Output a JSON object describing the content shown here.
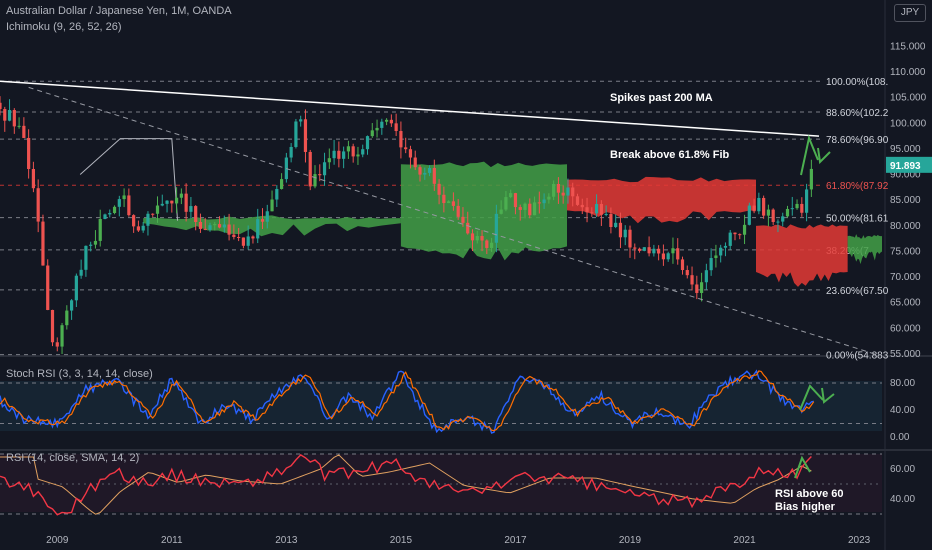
{
  "header": {
    "symbol_title": "Australian Dollar / Japanese Yen, 1M, OANDA",
    "indicator": "Ichimoku (9, 26, 52, 26)",
    "currency_badge": "JPY"
  },
  "colors": {
    "background": "#131722",
    "candle_up": "#26a69a",
    "candle_up_bright": "#4caf50",
    "candle_down": "#ef5350",
    "cloud_bull": "#43a047",
    "cloud_bear": "#e53935",
    "trendline": "#ffffff",
    "last_price_badge": "#26a69a",
    "stoch_k": "#2962ff",
    "stoch_d": "#ff6d00",
    "rsi": "#f23645",
    "rsi_ma": "#e0a060",
    "arrow": "#4caf50"
  },
  "chart_data": [
    {
      "type": "candlestick",
      "title": "Australian Dollar / Japanese Yen, 1M, OANDA",
      "x_tick_labels": [
        "2009",
        "2011",
        "2013",
        "2015",
        "2017",
        "2019",
        "2021",
        "2023"
      ],
      "x_tick_years": [
        2009,
        2011,
        2013,
        2015,
        2017,
        2019,
        2021,
        2023
      ],
      "y_tick_labels": [
        "55.000",
        "60.000",
        "65.000",
        "70.000",
        "75.000",
        "80.000",
        "85.000",
        "90.000",
        "95.000",
        "100.000",
        "105.000",
        "110.000",
        "115.000"
      ],
      "ylim": [
        55,
        115
      ],
      "last_price": "91.893",
      "fib_levels": [
        {
          "label": "100.00%(108.",
          "value": 108.2
        },
        {
          "label": "88.60%(102.2",
          "value": 102.2
        },
        {
          "label": "78.60%(96.90",
          "value": 96.9
        },
        {
          "label": "61.80%(87.92",
          "value": 87.92
        },
        {
          "label": "50.00%(81.61",
          "value": 81.61
        },
        {
          "label": "38.20%(7",
          "value": 75.3
        },
        {
          "label": "23.60%(67.50",
          "value": 67.5
        },
        {
          "label": "0.00%(54.883",
          "value": 54.883
        }
      ],
      "annotations": [
        {
          "text": "Spikes past 200 MA"
        },
        {
          "text": "Break above 61.8% Fib"
        }
      ],
      "anchors": [
        {
          "year": 2008.0,
          "value": 104.0
        },
        {
          "year": 2008.5,
          "value": 98.0
        },
        {
          "year": 2008.75,
          "value": 82.0
        },
        {
          "year": 2008.95,
          "value": 60.0
        },
        {
          "year": 2009.1,
          "value": 56.5
        },
        {
          "year": 2009.5,
          "value": 73.0
        },
        {
          "year": 2009.9,
          "value": 82.0
        },
        {
          "year": 2010.3,
          "value": 85.0
        },
        {
          "year": 2010.45,
          "value": 78.0
        },
        {
          "year": 2010.9,
          "value": 84.0
        },
        {
          "year": 2011.3,
          "value": 85.0
        },
        {
          "year": 2011.6,
          "value": 78.0
        },
        {
          "year": 2012.0,
          "value": 80.0
        },
        {
          "year": 2012.4,
          "value": 77.0
        },
        {
          "year": 2012.9,
          "value": 86.0
        },
        {
          "year": 2013.3,
          "value": 102.0
        },
        {
          "year": 2013.5,
          "value": 89.0
        },
        {
          "year": 2013.9,
          "value": 94.0
        },
        {
          "year": 2014.4,
          "value": 95.0
        },
        {
          "year": 2014.9,
          "value": 101.0
        },
        {
          "year": 2015.2,
          "value": 93.0
        },
        {
          "year": 2015.6,
          "value": 90.0
        },
        {
          "year": 2015.9,
          "value": 84.0
        },
        {
          "year": 2016.3,
          "value": 78.0
        },
        {
          "year": 2016.6,
          "value": 76.0
        },
        {
          "year": 2016.9,
          "value": 86.0
        },
        {
          "year": 2017.3,
          "value": 83.0
        },
        {
          "year": 2017.8,
          "value": 88.0
        },
        {
          "year": 2018.3,
          "value": 84.0
        },
        {
          "year": 2018.8,
          "value": 81.0
        },
        {
          "year": 2019.0,
          "value": 78.0
        },
        {
          "year": 2019.5,
          "value": 74.0
        },
        {
          "year": 2019.9,
          "value": 75.0
        },
        {
          "year": 2020.2,
          "value": 66.0
        },
        {
          "year": 2020.5,
          "value": 74.0
        },
        {
          "year": 2020.9,
          "value": 78.0
        },
        {
          "year": 2021.3,
          "value": 85.0
        },
        {
          "year": 2021.6,
          "value": 81.0
        },
        {
          "year": 2021.9,
          "value": 82.0
        },
        {
          "year": 2022.1,
          "value": 84.0
        },
        {
          "year": 2022.22,
          "value": 91.9
        }
      ]
    },
    {
      "type": "line",
      "title": "Stoch RSI (3, 3, 14, 14, close)",
      "y_tick_labels": [
        "0.00",
        "40.00",
        "80.00"
      ],
      "ylim": [
        0,
        100
      ],
      "bands": [
        20,
        80
      ],
      "anchors": [
        {
          "year": 2008.0,
          "value": 55
        },
        {
          "year": 2008.4,
          "value": 25
        },
        {
          "year": 2009.0,
          "value": 20
        },
        {
          "year": 2009.5,
          "value": 70
        },
        {
          "year": 2010.0,
          "value": 85
        },
        {
          "year": 2010.6,
          "value": 30
        },
        {
          "year": 2011.0,
          "value": 85
        },
        {
          "year": 2011.5,
          "value": 20
        },
        {
          "year": 2012.0,
          "value": 50
        },
        {
          "year": 2012.4,
          "value": 25
        },
        {
          "year": 2012.9,
          "value": 70
        },
        {
          "year": 2013.3,
          "value": 93
        },
        {
          "year": 2013.7,
          "value": 30
        },
        {
          "year": 2014.1,
          "value": 60
        },
        {
          "year": 2014.5,
          "value": 30
        },
        {
          "year": 2015.0,
          "value": 95
        },
        {
          "year": 2015.6,
          "value": 10
        },
        {
          "year": 2016.1,
          "value": 30
        },
        {
          "year": 2016.6,
          "value": 10
        },
        {
          "year": 2017.1,
          "value": 90
        },
        {
          "year": 2017.6,
          "value": 70
        },
        {
          "year": 2018.0,
          "value": 35
        },
        {
          "year": 2018.5,
          "value": 60
        },
        {
          "year": 2019.0,
          "value": 20
        },
        {
          "year": 2019.5,
          "value": 40
        },
        {
          "year": 2020.0,
          "value": 15
        },
        {
          "year": 2020.4,
          "value": 60
        },
        {
          "year": 2020.8,
          "value": 85
        },
        {
          "year": 2021.2,
          "value": 95
        },
        {
          "year": 2021.6,
          "value": 60
        },
        {
          "year": 2021.9,
          "value": 40
        },
        {
          "year": 2022.22,
          "value": 52
        }
      ]
    },
    {
      "type": "line",
      "title": "RSI (14, close, SMA, 14, 2)",
      "y_tick_labels": [
        "40.00",
        "60.00"
      ],
      "ylim": [
        20,
        75
      ],
      "bands": [
        30,
        70
      ],
      "annotation": [
        "RSI above 60",
        "Bias higher"
      ],
      "anchors": [
        {
          "year": 2008.0,
          "value": 54
        },
        {
          "year": 2008.5,
          "value": 48
        },
        {
          "year": 2008.95,
          "value": 33
        },
        {
          "year": 2009.1,
          "value": 29
        },
        {
          "year": 2009.5,
          "value": 45
        },
        {
          "year": 2010.0,
          "value": 58
        },
        {
          "year": 2010.5,
          "value": 51
        },
        {
          "year": 2011.0,
          "value": 56
        },
        {
          "year": 2011.6,
          "value": 52
        },
        {
          "year": 2012.3,
          "value": 50
        },
        {
          "year": 2013.0,
          "value": 60
        },
        {
          "year": 2013.3,
          "value": 70
        },
        {
          "year": 2013.7,
          "value": 55
        },
        {
          "year": 2014.2,
          "value": 58
        },
        {
          "year": 2014.9,
          "value": 64
        },
        {
          "year": 2015.5,
          "value": 49
        },
        {
          "year": 2016.3,
          "value": 44
        },
        {
          "year": 2017.0,
          "value": 54
        },
        {
          "year": 2017.8,
          "value": 54
        },
        {
          "year": 2018.5,
          "value": 48
        },
        {
          "year": 2019.0,
          "value": 44
        },
        {
          "year": 2019.5,
          "value": 40
        },
        {
          "year": 2020.2,
          "value": 37
        },
        {
          "year": 2020.6,
          "value": 47
        },
        {
          "year": 2021.0,
          "value": 53
        },
        {
          "year": 2021.4,
          "value": 62
        },
        {
          "year": 2021.7,
          "value": 56
        },
        {
          "year": 2022.0,
          "value": 58
        },
        {
          "year": 2022.22,
          "value": 68
        }
      ]
    }
  ]
}
